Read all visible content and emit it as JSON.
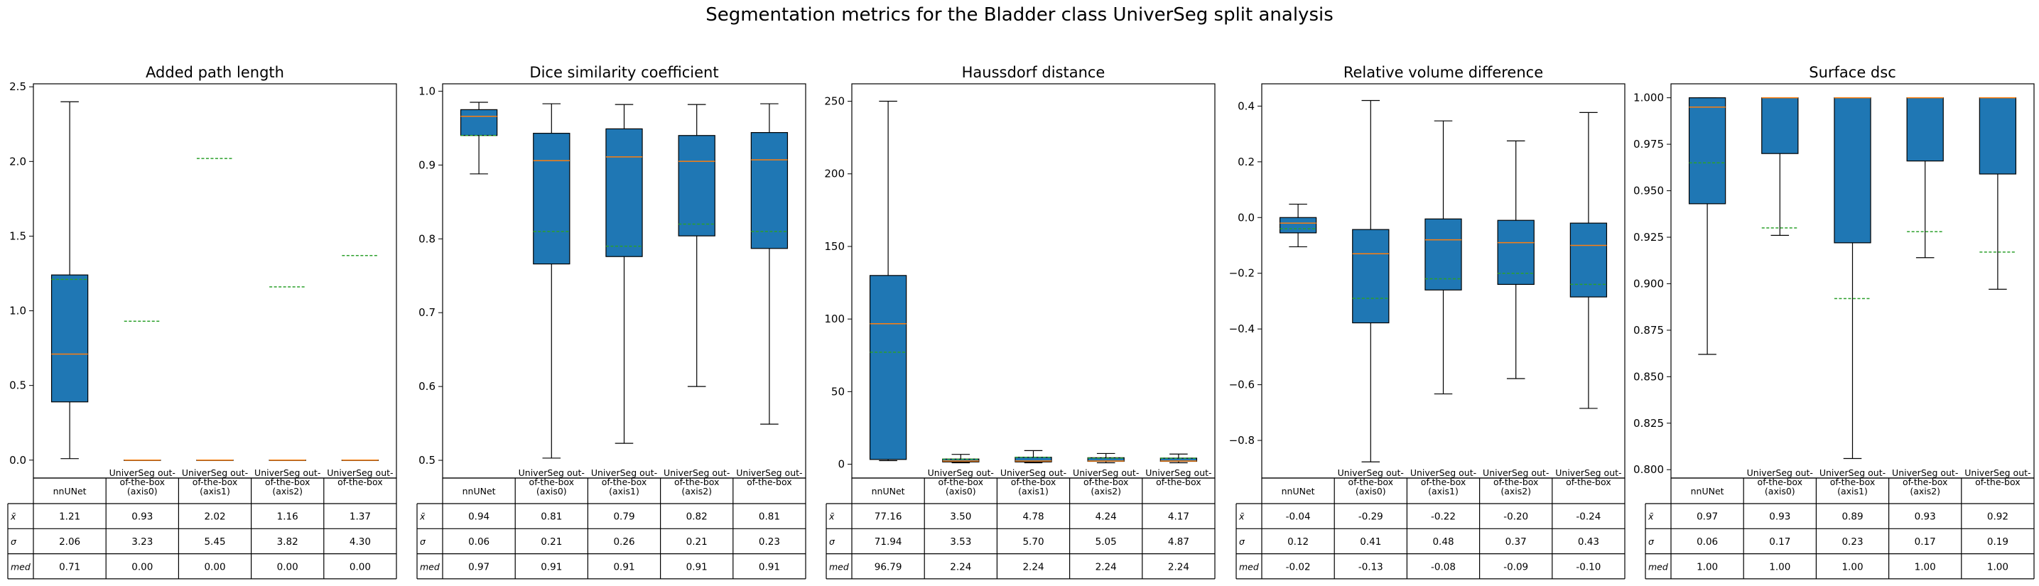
{
  "suptitle": "Segmentation metrics for the Bladder class UniverSeg split analysis",
  "column_labels": [
    "nnUNet",
    "UniverSeg out-\nof-the-box\n(axis0)",
    "UniverSeg out-\nof-the-box\n(axis1)",
    "UniverSeg out-\nof-the-box\n(axis2)",
    "UniverSeg out-\nof-the-box"
  ],
  "row_labels": [
    "x̄",
    "σ",
    "med"
  ],
  "colors": {
    "box_fill": "#1f77b4",
    "median": "#ff7f0e",
    "mean": "#2ca02c",
    "edge": "#000000"
  },
  "chart_data": [
    {
      "type": "box",
      "title": "Added path length",
      "ylim": [
        -0.12,
        2.52
      ],
      "yticks": [
        "0.0",
        "0.5",
        "1.0",
        "1.5",
        "2.0",
        "2.5"
      ],
      "ytick_values": [
        0,
        0.5,
        1.0,
        1.5,
        2.0,
        2.5
      ],
      "categories": [
        "nnUNet",
        "UniverSeg out-of-the-box (axis0)",
        "UniverSeg out-of-the-box (axis1)",
        "UniverSeg out-of-the-box (axis2)",
        "UniverSeg out-of-the-box"
      ],
      "boxes": [
        {
          "whislo": 0.01,
          "q1": 0.39,
          "med": 0.71,
          "q3": 1.24,
          "whishi": 2.4,
          "mean": 1.21
        },
        {
          "whislo": 0.0,
          "q1": 0.0,
          "med": 0.0,
          "q3": 0.0,
          "whishi": 0.0,
          "mean": 0.93
        },
        {
          "whislo": 0.0,
          "q1": 0.0,
          "med": 0.0,
          "q3": 0.0,
          "whishi": 0.0,
          "mean": 2.02
        },
        {
          "whislo": 0.0,
          "q1": 0.0,
          "med": 0.0,
          "q3": 0.0,
          "whishi": 0.0,
          "mean": 1.16
        },
        {
          "whislo": 0.0,
          "q1": 0.0,
          "med": 0.0,
          "q3": 0.0,
          "whishi": 0.0,
          "mean": 1.37
        }
      ],
      "table": [
        [
          "1.21",
          "0.93",
          "2.02",
          "1.16",
          "1.37"
        ],
        [
          "2.06",
          "3.23",
          "5.45",
          "3.82",
          "4.30"
        ],
        [
          "0.71",
          "0.00",
          "0.00",
          "0.00",
          "0.00"
        ]
      ]
    },
    {
      "type": "box",
      "title": "Dice similarity coefficient",
      "ylim": [
        0.476,
        1.01
      ],
      "yticks": [
        "0.5",
        "0.6",
        "0.7",
        "0.8",
        "0.9",
        "1.0"
      ],
      "ytick_values": [
        0.5,
        0.6,
        0.7,
        0.8,
        0.9,
        1.0
      ],
      "categories": [
        "nnUNet",
        "UniverSeg out-of-the-box (axis0)",
        "UniverSeg out-of-the-box (axis1)",
        "UniverSeg out-of-the-box (axis2)",
        "UniverSeg out-of-the-box"
      ],
      "boxes": [
        {
          "whislo": 0.888,
          "q1": 0.94,
          "med": 0.966,
          "q3": 0.975,
          "whishi": 0.985,
          "mean": 0.94
        },
        {
          "whislo": 0.503,
          "q1": 0.766,
          "med": 0.906,
          "q3": 0.943,
          "whishi": 0.983,
          "mean": 0.81
        },
        {
          "whislo": 0.523,
          "q1": 0.776,
          "med": 0.911,
          "q3": 0.949,
          "whishi": 0.982,
          "mean": 0.79
        },
        {
          "whislo": 0.6,
          "q1": 0.804,
          "med": 0.905,
          "q3": 0.94,
          "whishi": 0.982,
          "mean": 0.82
        },
        {
          "whislo": 0.549,
          "q1": 0.787,
          "med": 0.907,
          "q3": 0.944,
          "whishi": 0.983,
          "mean": 0.81
        }
      ],
      "table": [
        [
          "0.94",
          "0.81",
          "0.79",
          "0.82",
          "0.81"
        ],
        [
          "0.06",
          "0.21",
          "0.26",
          "0.21",
          "0.23"
        ],
        [
          "0.97",
          "0.91",
          "0.91",
          "0.91",
          "0.91"
        ]
      ]
    },
    {
      "type": "box",
      "title": "Haussdorf distance",
      "ylim": [
        -9.5,
        262
      ],
      "yticks": [
        "0",
        "50",
        "100",
        "150",
        "200",
        "250"
      ],
      "ytick_values": [
        0,
        50,
        100,
        150,
        200,
        250
      ],
      "categories": [
        "nnUNet",
        "UniverSeg out-of-the-box (axis0)",
        "UniverSeg out-of-the-box (axis1)",
        "UniverSeg out-of-the-box (axis2)",
        "UniverSeg out-of-the-box"
      ],
      "boxes": [
        {
          "whislo": 2.5,
          "q1": 3.3,
          "med": 96.79,
          "q3": 130.0,
          "whishi": 250.0,
          "mean": 77.16
        },
        {
          "whislo": 1.0,
          "q1": 1.6,
          "med": 2.24,
          "q3": 3.6,
          "whishi": 6.8,
          "mean": 3.5
        },
        {
          "whislo": 1.0,
          "q1": 1.6,
          "med": 2.24,
          "q3": 4.8,
          "whishi": 9.4,
          "mean": 4.78
        },
        {
          "whislo": 1.0,
          "q1": 2.0,
          "med": 2.24,
          "q3": 4.5,
          "whishi": 7.4,
          "mean": 4.24
        },
        {
          "whislo": 1.0,
          "q1": 2.0,
          "med": 2.24,
          "q3": 4.2,
          "whishi": 7.0,
          "mean": 4.17
        }
      ],
      "table": [
        [
          "77.16",
          "3.50",
          "4.78",
          "4.24",
          "4.17"
        ],
        [
          "71.94",
          "3.53",
          "5.70",
          "5.05",
          "4.87"
        ],
        [
          "96.79",
          "2.24",
          "2.24",
          "2.24",
          "2.24"
        ]
      ]
    },
    {
      "type": "box",
      "title": "Relative volume difference",
      "ylim": [
        -0.935,
        0.48
      ],
      "yticks": [
        "−0.8",
        "−0.6",
        "−0.4",
        "−0.2",
        "0.0",
        "0.2",
        "0.4"
      ],
      "ytick_values": [
        -0.8,
        -0.6,
        -0.4,
        -0.2,
        0.0,
        0.2,
        0.4
      ],
      "categories": [
        "nnUNet",
        "UniverSeg out-of-the-box (axis0)",
        "UniverSeg out-of-the-box (axis1)",
        "UniverSeg out-of-the-box (axis2)",
        "UniverSeg out-of-the-box"
      ],
      "boxes": [
        {
          "whislo": -0.105,
          "q1": -0.055,
          "med": -0.02,
          "q3": 0.0,
          "whishi": 0.048,
          "mean": -0.04
        },
        {
          "whislo": -0.877,
          "q1": -0.378,
          "med": -0.13,
          "q3": -0.043,
          "whishi": 0.42,
          "mean": -0.29
        },
        {
          "whislo": -0.633,
          "q1": -0.26,
          "med": -0.08,
          "q3": -0.005,
          "whishi": 0.347,
          "mean": -0.22
        },
        {
          "whislo": -0.578,
          "q1": -0.24,
          "med": -0.09,
          "q3": -0.01,
          "whishi": 0.275,
          "mean": -0.2
        },
        {
          "whislo": -0.685,
          "q1": -0.285,
          "med": -0.1,
          "q3": -0.02,
          "whishi": 0.377,
          "mean": -0.24
        }
      ],
      "table": [
        [
          "-0.04",
          "-0.29",
          "-0.22",
          "-0.20",
          "-0.24"
        ],
        [
          "0.12",
          "0.41",
          "0.48",
          "0.37",
          "0.43"
        ],
        [
          "-0.02",
          "-0.13",
          "-0.08",
          "-0.09",
          "-0.10"
        ]
      ]
    },
    {
      "type": "box",
      "title": "Surface dsc",
      "ylim": [
        0.7955,
        1.0075
      ],
      "yticks": [
        "0.800",
        "0.825",
        "0.850",
        "0.875",
        "0.900",
        "0.925",
        "0.950",
        "0.975",
        "1.000"
      ],
      "ytick_values": [
        0.8,
        0.825,
        0.85,
        0.875,
        0.9,
        0.925,
        0.95,
        0.975,
        1.0
      ],
      "categories": [
        "nnUNet",
        "UniverSeg out-of-the-box (axis0)",
        "UniverSeg out-of-the-box (axis1)",
        "UniverSeg out-of-the-box (axis2)",
        "UniverSeg out-of-the-box"
      ],
      "boxes": [
        {
          "whislo": 0.862,
          "q1": 0.943,
          "med": 0.995,
          "q3": 1.0,
          "whishi": 1.0,
          "mean": 0.965
        },
        {
          "whislo": 0.926,
          "q1": 0.97,
          "med": 1.0,
          "q3": 1.0,
          "whishi": 1.0,
          "mean": 0.93
        },
        {
          "whislo": 0.806,
          "q1": 0.922,
          "med": 1.0,
          "q3": 1.0,
          "whishi": 1.0,
          "mean": 0.892
        },
        {
          "whislo": 0.914,
          "q1": 0.966,
          "med": 1.0,
          "q3": 1.0,
          "whishi": 1.0,
          "mean": 0.928
        },
        {
          "whislo": 0.897,
          "q1": 0.959,
          "med": 1.0,
          "q3": 1.0,
          "whishi": 1.0,
          "mean": 0.917
        }
      ],
      "table": [
        [
          "0.97",
          "0.93",
          "0.89",
          "0.93",
          "0.92"
        ],
        [
          "0.06",
          "0.17",
          "0.23",
          "0.17",
          "0.19"
        ],
        [
          "1.00",
          "1.00",
          "1.00",
          "1.00",
          "1.00"
        ]
      ]
    }
  ]
}
